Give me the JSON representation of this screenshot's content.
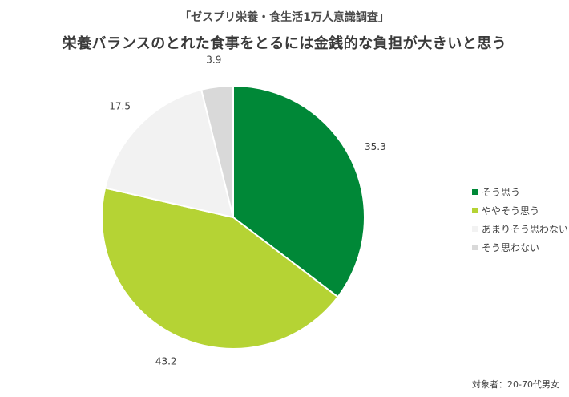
{
  "survey_title": "「ゼスプリ栄養・食生活1万人意識調査」",
  "chart_data": {
    "type": "pie",
    "title": "栄養バランスのとれた食事をとるには金銭的な負担が大きいと思う",
    "categories": [
      "そう思う",
      "ややそう思う",
      "あまりそう思わない",
      "そう思わない"
    ],
    "values": [
      35.3,
      43.2,
      17.5,
      3.9
    ],
    "value_labels": [
      "35.3",
      "43.2",
      "17.5",
      "3.9"
    ],
    "colors": [
      "#008837",
      "#b5d334",
      "#f2f2f2",
      "#d9d9d9"
    ],
    "legend_position": "right"
  },
  "footnote": "対象者：20-70代男女"
}
